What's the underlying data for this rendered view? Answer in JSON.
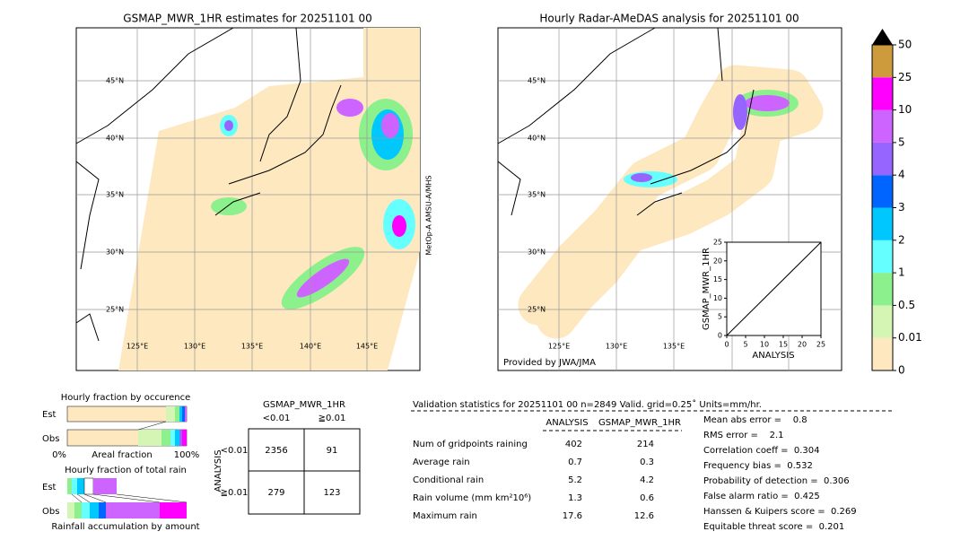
{
  "left_map": {
    "title": "GSMAP_MWR_1HR estimates for 20251101 00",
    "lat_labels": [
      "45°N",
      "40°N",
      "35°N",
      "30°N",
      "25°N"
    ],
    "lon_labels": [
      "125°E",
      "130°E",
      "135°E",
      "140°E",
      "145°E"
    ],
    "satellite": "MetOp-A AMSU-A/MHS"
  },
  "right_map": {
    "title": "Hourly Radar-AMeDAS analysis for 20251101 00",
    "lat_labels": [
      "45°N",
      "40°N",
      "35°N",
      "30°N",
      "25°N"
    ],
    "lon_labels": [
      "125°E",
      "130°E",
      "135°E"
    ],
    "credit": "Provided by JWA/JMA",
    "scatter": {
      "xlabel": "ANALYSIS",
      "ylabel": "GSMAP_MWR_1HR",
      "ticks": [
        0,
        5,
        10,
        15,
        20,
        25
      ]
    }
  },
  "colorbar": {
    "labels": [
      "0",
      "0.01",
      "0.5",
      "1",
      "2",
      "3",
      "4",
      "5",
      "10",
      "25",
      "50"
    ],
    "colors": [
      "#fee8c0",
      "#d4f5b4",
      "#8cf08c",
      "#66ffff",
      "#00c8ff",
      "#0064ff",
      "#9664ff",
      "#cd64ff",
      "#ff00ff",
      "#cd9b3c"
    ]
  },
  "fractions": {
    "occurrence_title": "Hourly fraction by occurence",
    "total_title": "Hourly fraction of total rain",
    "row_labels": [
      "Est",
      "Obs"
    ],
    "axis_labels": [
      "0%",
      "Areal fraction",
      "100%"
    ],
    "total_axis": "Rainfall accumulation by amount"
  },
  "contingency": {
    "title": "GSMAP_MWR_1HR",
    "columns": [
      "<0.01",
      "≧0.01"
    ],
    "side_label": "ANALYSIS",
    "rows": [
      "<0.01",
      "≧0.01"
    ],
    "cells": [
      [
        "2356",
        "91"
      ],
      [
        "279",
        "123"
      ]
    ]
  },
  "validation": {
    "title": "Validation statistics for 20251101 00  n=2849 Valid. grid=0.25˚ Units=mm/hr.",
    "columns": [
      "ANALYSIS",
      "GSMAP_MWR_1HR"
    ],
    "rows": [
      [
        "Num of gridpoints raining",
        "402",
        "214"
      ],
      [
        "Average rain",
        "0.7",
        "0.3"
      ],
      [
        "Conditional rain",
        "5.2",
        "4.2"
      ],
      [
        "Rain volume (mm km²10⁶)",
        "1.3",
        "0.6"
      ],
      [
        "Maximum rain",
        "17.6",
        "12.6"
      ]
    ],
    "scores": [
      "Mean abs error =    0.8",
      "RMS error =    2.1",
      "Correlation coeff =  0.304",
      "Frequency bias =  0.532",
      "Probability of detection =  0.306",
      "False alarm ratio =  0.425",
      "Hanssen & Kuipers score =  0.269",
      "Equitable threat score =  0.201"
    ]
  }
}
